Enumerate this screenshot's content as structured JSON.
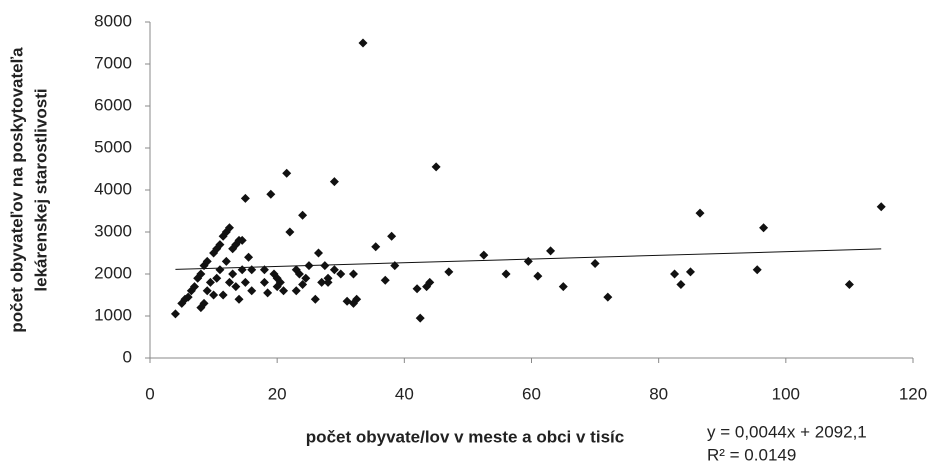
{
  "chart_data": {
    "type": "scatter",
    "xlabel": "počet obyvate/lov v meste a obci v tisíc",
    "ylabel": [
      "počet obyvateľov na poskytovateľa",
      "lekárenskej starostlivosti"
    ],
    "xlim": [
      0,
      120
    ],
    "xticks": [
      0,
      20,
      40,
      60,
      80,
      100,
      120
    ],
    "ylim": [
      0,
      8000
    ],
    "yticks": [
      0,
      1000,
      2000,
      3000,
      4000,
      5000,
      6000,
      7000,
      8000
    ],
    "color": "#111111",
    "series": [
      {
        "name": null,
        "color": "#111111",
        "x": [
          4,
          5,
          5.5,
          6,
          6.5,
          7,
          7.5,
          8,
          8,
          8.5,
          8.5,
          9,
          9,
          9.5,
          10,
          10,
          10.5,
          10.5,
          11,
          11,
          11.5,
          11.5,
          12,
          12,
          12.5,
          12.5,
          13,
          13,
          13.5,
          13.5,
          14,
          14,
          14.5,
          14.5,
          15,
          15,
          15.5,
          16,
          16,
          18,
          18,
          18.5,
          19,
          19.5,
          20,
          20,
          20.5,
          21,
          21.5,
          22,
          23,
          23,
          23.5,
          24,
          24,
          24.5,
          25,
          26,
          26.5,
          27,
          27.5,
          28,
          28,
          29,
          29,
          30,
          31,
          32,
          32.5,
          32,
          33.5,
          35.5,
          37,
          38,
          38.5,
          42,
          42.5,
          43.5,
          44,
          45,
          47,
          52.5,
          56,
          59.5,
          61,
          63,
          65,
          70,
          72,
          82.5,
          83.5,
          85,
          86.5,
          95.5,
          96.5,
          110,
          115
        ],
        "values": [
          1050,
          1300,
          1400,
          1450,
          1600,
          1700,
          1900,
          1200,
          2000,
          1300,
          2200,
          1600,
          2300,
          1800,
          2500,
          1500,
          2600,
          1900,
          2700,
          2100,
          2900,
          1500,
          3000,
          2300,
          3100,
          1800,
          2600,
          2000,
          2700,
          1700,
          2800,
          1400,
          2800,
          2100,
          3800,
          1800,
          2400,
          1600,
          2100,
          2100,
          1800,
          1550,
          3900,
          2000,
          1900,
          1700,
          1800,
          1600,
          4400,
          3000,
          2100,
          1600,
          2000,
          1750,
          3400,
          1900,
          2200,
          1400,
          2500,
          1800,
          2200,
          1900,
          1800,
          4200,
          2100,
          2000,
          1350,
          1300,
          1400,
          2000,
          7500,
          2650,
          1850,
          2900,
          2200,
          1650,
          950,
          1700,
          1800,
          4550,
          2050,
          2450,
          2000,
          2300,
          1950,
          2550,
          1700,
          2250,
          1450,
          2000,
          1750,
          2050,
          3450,
          2100,
          3100,
          1750,
          3600
        ]
      }
    ],
    "trendline": {
      "x": [
        4,
        115
      ],
      "values": [
        2110,
        2598
      ],
      "equation": "y = 0,0044x + 2092,1",
      "r2": "R² = 0.0149"
    }
  }
}
